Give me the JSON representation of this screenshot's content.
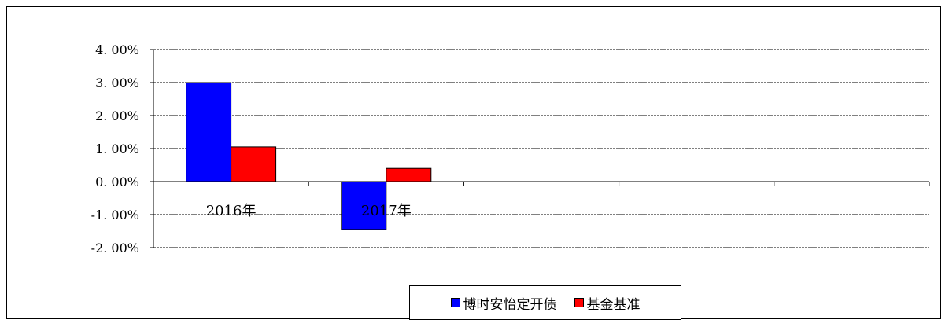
{
  "chart_data": {
    "type": "bar",
    "title": "",
    "xlabel": "",
    "ylabel": "",
    "categories": [
      "2016年",
      "2017年",
      "",
      "",
      ""
    ],
    "series": [
      {
        "name": "博时安怡定开债",
        "values": [
          3.0,
          -1.45,
          null,
          null,
          null
        ],
        "color": "#0000FF"
      },
      {
        "name": "基金基准",
        "values": [
          1.05,
          0.4,
          null,
          null,
          null
        ],
        "color": "#FF0000"
      }
    ],
    "ylim": [
      -2.0,
      4.0
    ],
    "yticks": [
      "4. 00%",
      "3. 00%",
      "2. 00%",
      "1. 00%",
      "0. 00%",
      "-1. 00%",
      "-2. 00%"
    ],
    "grid": true,
    "legend_position": "bottom-center"
  }
}
